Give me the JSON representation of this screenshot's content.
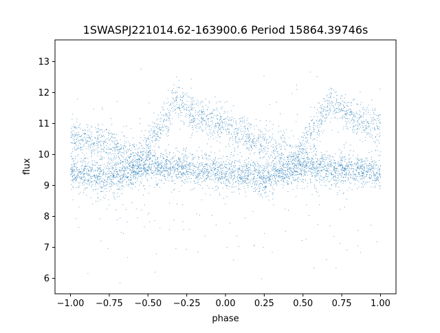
{
  "chart_data": {
    "type": "scatter",
    "title": "1SWASPJ221014.62-163900.6 Period 15864.39746s",
    "xlabel": "phase",
    "ylabel": "flux",
    "xlim": [
      -1.1,
      1.1
    ],
    "ylim": [
      5.5,
      13.7
    ],
    "x_ticks": [
      -1.0,
      -0.75,
      -0.5,
      -0.25,
      0.0,
      0.25,
      0.5,
      0.75,
      1.0
    ],
    "x_tick_labels": [
      "−1.00",
      "−0.75",
      "−0.50",
      "−0.25",
      "0.00",
      "0.25",
      "0.50",
      "0.75",
      "1.00"
    ],
    "y_ticks": [
      6,
      7,
      8,
      9,
      10,
      11,
      12,
      13
    ],
    "y_tick_labels": [
      "6",
      "7",
      "8",
      "9",
      "10",
      "11",
      "12",
      "13"
    ],
    "grid": false,
    "marker_color": "#1f77b4",
    "series": [
      {
        "description_of_structure": "phase-folded light curve, same profile repeated every 1.0 phase",
        "baseline_branch": [
          {
            "x": -1.0,
            "y": 9.4
          },
          {
            "x": -0.75,
            "y": 9.25
          },
          {
            "x": -0.5,
            "y": 9.6
          },
          {
            "x": -0.25,
            "y": 9.55
          },
          {
            "x": 0.0,
            "y": 9.4
          },
          {
            "x": 0.25,
            "y": 9.25
          },
          {
            "x": 0.5,
            "y": 9.6
          },
          {
            "x": 0.75,
            "y": 9.55
          },
          {
            "x": 1.0,
            "y": 9.4
          }
        ],
        "pulse_branch": [
          {
            "x": -1.0,
            "y": 10.6
          },
          {
            "x": -0.75,
            "y": 10.3
          },
          {
            "x": -0.55,
            "y": 9.8
          },
          {
            "x": -0.45,
            "y": 10.6
          },
          {
            "x": -0.32,
            "y": 11.7
          },
          {
            "x": -0.2,
            "y": 11.3
          },
          {
            "x": 0.0,
            "y": 10.9
          },
          {
            "x": 0.25,
            "y": 10.3
          },
          {
            "x": 0.45,
            "y": 9.8
          },
          {
            "x": 0.55,
            "y": 10.6
          },
          {
            "x": 0.68,
            "y": 11.7
          },
          {
            "x": 0.8,
            "y": 11.3
          },
          {
            "x": 1.0,
            "y": 10.8
          }
        ]
      }
    ]
  }
}
